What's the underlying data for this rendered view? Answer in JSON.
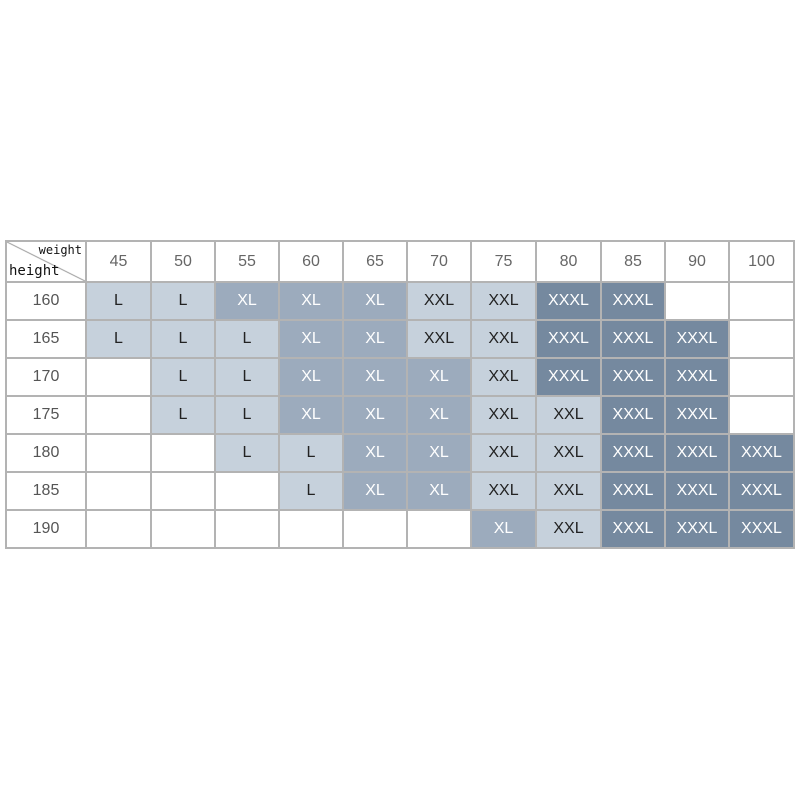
{
  "corner": {
    "weight_label": "weight",
    "height_label": "height"
  },
  "weights": [
    "45",
    "50",
    "55",
    "60",
    "65",
    "70",
    "75",
    "80",
    "85",
    "90",
    "100"
  ],
  "size_colors": {
    "L": {
      "bg": "#c6d1dc",
      "fg": "#222222"
    },
    "XL": {
      "bg": "#9cabbd",
      "fg": "#ffffff"
    },
    "XXL": {
      "bg": "#c6d1dc",
      "fg": "#222222"
    },
    "XXXL": {
      "bg": "#75899f",
      "fg": "#ffffff"
    }
  },
  "rows": [
    {
      "height": "160",
      "sizes": [
        "L",
        "L",
        "XL",
        "XL",
        "XL",
        "XXL",
        "XXL",
        "XXXL",
        "XXXL",
        "",
        ""
      ]
    },
    {
      "height": "165",
      "sizes": [
        "L",
        "L",
        "L",
        "XL",
        "XL",
        "XXL",
        "XXL",
        "XXXL",
        "XXXL",
        "XXXL",
        ""
      ]
    },
    {
      "height": "170",
      "sizes": [
        "",
        "L",
        "L",
        "XL",
        "XL",
        "XL",
        "XXL",
        "XXXL",
        "XXXL",
        "XXXL",
        ""
      ]
    },
    {
      "height": "175",
      "sizes": [
        "",
        "L",
        "L",
        "XL",
        "XL",
        "XL",
        "XXL",
        "XXL",
        "XXXL",
        "XXXL",
        ""
      ]
    },
    {
      "height": "180",
      "sizes": [
        "",
        "",
        "L",
        "L",
        "XL",
        "XL",
        "XXL",
        "XXL",
        "XXXL",
        "XXXL",
        "XXXL"
      ]
    },
    {
      "height": "185",
      "sizes": [
        "",
        "",
        "",
        "L",
        "XL",
        "XL",
        "XXL",
        "XXL",
        "XXXL",
        "XXXL",
        "XXXL"
      ]
    },
    {
      "height": "190",
      "sizes": [
        "",
        "",
        "",
        "",
        "",
        "",
        "XL",
        "XXL",
        "XXXL",
        "XXXL",
        "XXXL"
      ]
    }
  ]
}
